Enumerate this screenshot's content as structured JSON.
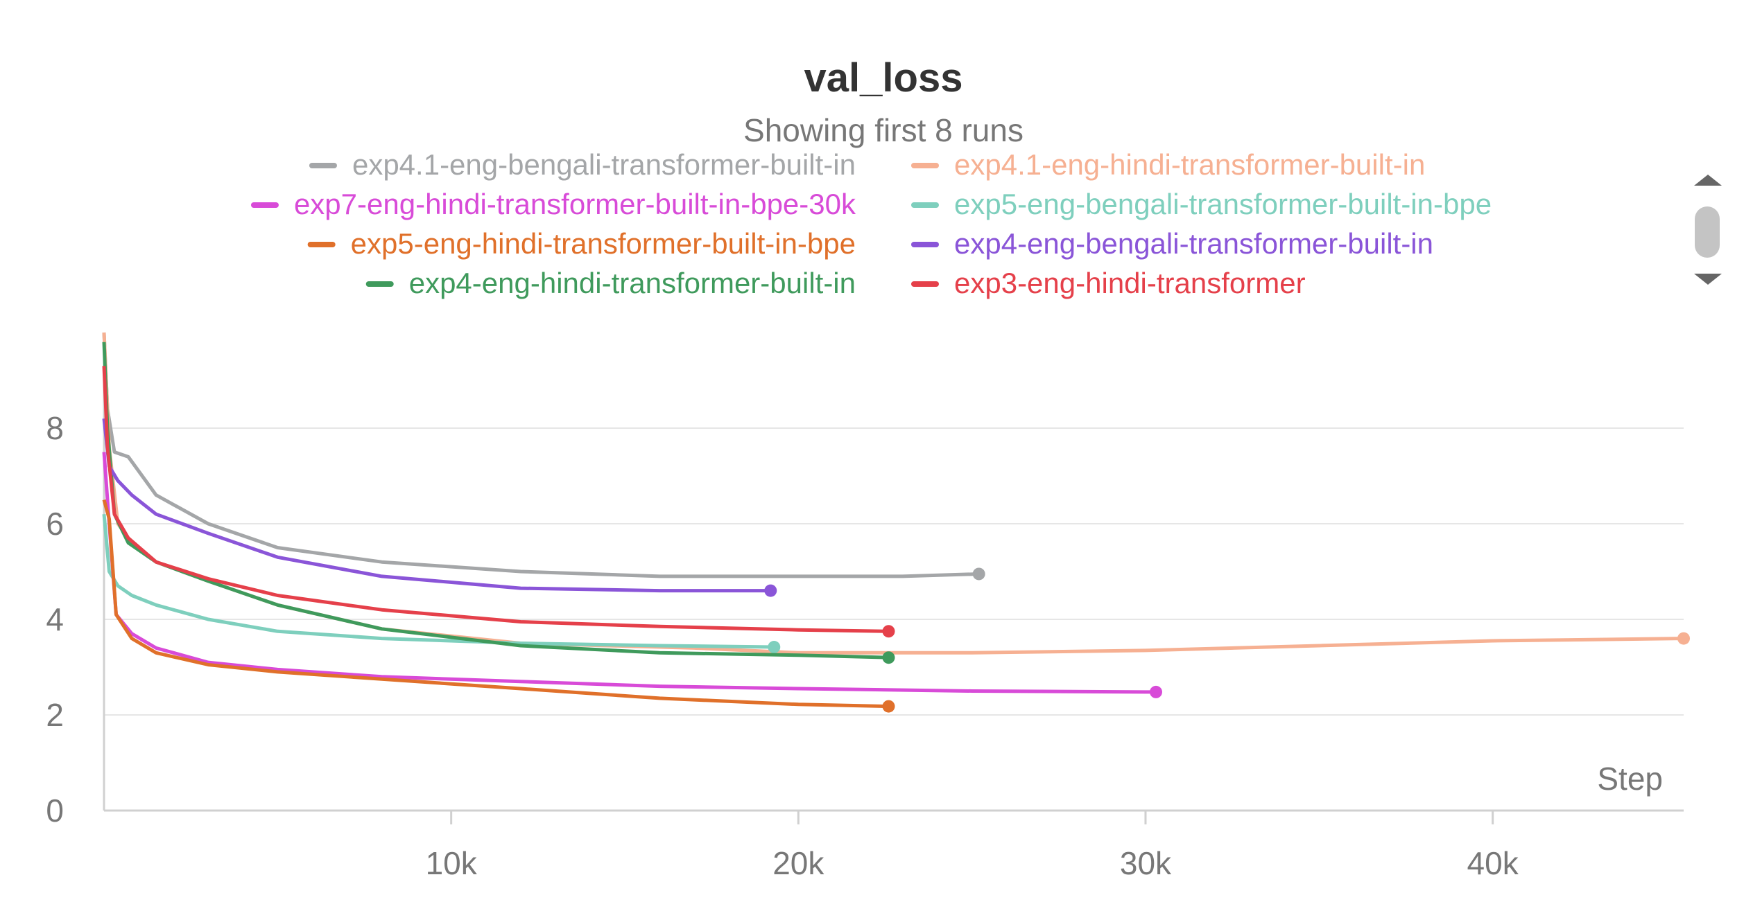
{
  "chart_data": {
    "type": "line",
    "title": "val_loss",
    "subtitle": "Showing first 8 runs",
    "xlabel": "Step",
    "ylabel": "",
    "xlim": [
      0,
      45500
    ],
    "ylim": [
      0,
      10
    ],
    "x_ticks": [
      {
        "value": 10000,
        "label": "10k"
      },
      {
        "value": 20000,
        "label": "20k"
      },
      {
        "value": 30000,
        "label": "30k"
      },
      {
        "value": 40000,
        "label": "40k"
      }
    ],
    "y_ticks": [
      {
        "value": 0,
        "label": "0"
      },
      {
        "value": 2,
        "label": "2"
      },
      {
        "value": 4,
        "label": "4"
      },
      {
        "value": 6,
        "label": "6"
      },
      {
        "value": 8,
        "label": "8"
      }
    ],
    "grid": true,
    "legend_placement": "top",
    "series": [
      {
        "name": "exp4.1-eng-bengali-transformer-built-in",
        "color": "#a4a6a8",
        "x": [
          0,
          100,
          300,
          700,
          1500,
          3000,
          5000,
          8000,
          12000,
          16000,
          20000,
          23000,
          25200
        ],
        "y": [
          10.0,
          8.4,
          7.5,
          7.4,
          6.6,
          6.0,
          5.5,
          5.2,
          5.0,
          4.9,
          4.9,
          4.9,
          4.95
        ]
      },
      {
        "name": "exp4.1-eng-hindi-transformer-built-in",
        "color": "#f6b092",
        "x": [
          0,
          150,
          400,
          800,
          1500,
          3000,
          5000,
          8000,
          12000,
          17000,
          20000,
          25000,
          30000,
          35000,
          40000,
          45500
        ],
        "y": [
          10.0,
          7.6,
          6.0,
          5.6,
          5.2,
          4.8,
          4.3,
          3.8,
          3.5,
          3.4,
          3.3,
          3.3,
          3.35,
          3.45,
          3.55,
          3.6
        ]
      },
      {
        "name": "exp7-eng-hindi-transformer-built-in-bpe-30k",
        "color": "#d84bd8",
        "x": [
          0,
          150,
          350,
          800,
          1500,
          3000,
          5000,
          8000,
          12000,
          16000,
          20000,
          25000,
          30300
        ],
        "y": [
          7.5,
          6.0,
          4.1,
          3.7,
          3.4,
          3.1,
          2.95,
          2.8,
          2.7,
          2.6,
          2.55,
          2.5,
          2.48
        ]
      },
      {
        "name": "exp5-eng-bengali-transformer-built-in-bpe",
        "color": "#7ecfbd",
        "x": [
          0,
          150,
          400,
          800,
          1500,
          3000,
          5000,
          8000,
          12000,
          16000,
          19300
        ],
        "y": [
          6.2,
          5.0,
          4.7,
          4.5,
          4.3,
          4.0,
          3.75,
          3.6,
          3.5,
          3.45,
          3.42
        ]
      },
      {
        "name": "exp5-eng-hindi-transformer-built-in-bpe",
        "color": "#e0702a",
        "x": [
          0,
          150,
          350,
          800,
          1500,
          3000,
          5000,
          8000,
          12000,
          16000,
          20000,
          22600
        ],
        "y": [
          6.5,
          6.1,
          4.1,
          3.6,
          3.3,
          3.05,
          2.9,
          2.75,
          2.55,
          2.35,
          2.22,
          2.18
        ]
      },
      {
        "name": "exp4-eng-bengali-transformer-built-in",
        "color": "#8a55d8",
        "x": [
          0,
          150,
          400,
          800,
          1500,
          3000,
          5000,
          8000,
          12000,
          16000,
          19200
        ],
        "y": [
          8.2,
          7.2,
          6.9,
          6.6,
          6.2,
          5.8,
          5.3,
          4.9,
          4.65,
          4.6,
          4.6
        ]
      },
      {
        "name": "exp4-eng-hindi-transformer-built-in",
        "color": "#3f9a5c",
        "x": [
          0,
          100,
          300,
          700,
          1500,
          3000,
          5000,
          8000,
          12000,
          16000,
          20000,
          22600
        ],
        "y": [
          9.8,
          8.0,
          6.2,
          5.6,
          5.2,
          4.8,
          4.3,
          3.8,
          3.45,
          3.3,
          3.25,
          3.2
        ]
      },
      {
        "name": "exp3-eng-hindi-transformer",
        "color": "#e5404a",
        "x": [
          0,
          100,
          300,
          700,
          1500,
          3000,
          5000,
          8000,
          12000,
          16000,
          20000,
          22600
        ],
        "y": [
          9.3,
          7.6,
          6.2,
          5.7,
          5.2,
          4.85,
          4.5,
          4.2,
          3.95,
          3.85,
          3.78,
          3.75
        ]
      }
    ]
  },
  "scroll": {
    "up_icon": "triangle-up-icon",
    "down_icon": "triangle-down-icon",
    "thumb_color": "#c4c4c4",
    "arrow_color": "#666666"
  }
}
